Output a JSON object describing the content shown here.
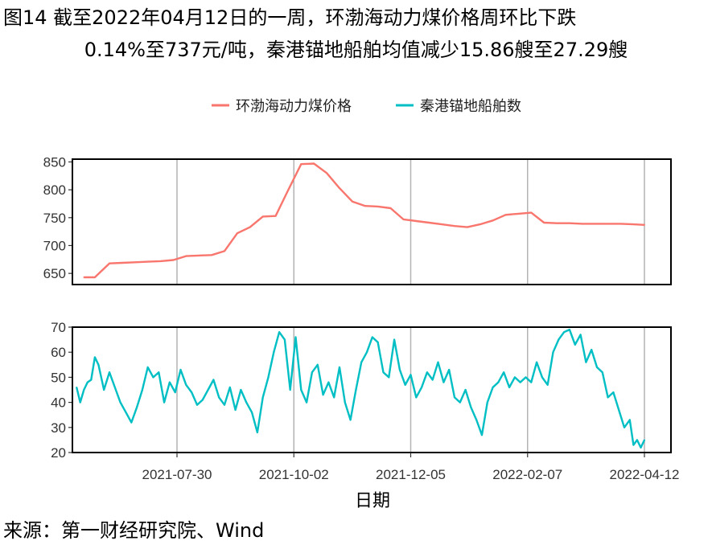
{
  "title_line1": "图14  截至2022年04月12日的一周，环渤海动力煤价格周环比下跌",
  "title_line2": "0.14%至737元/吨，秦港锚地船舶均值减少15.86艘至27.29艘",
  "source": "来源：第一财经研究院、Wind",
  "colors": {
    "coal": "#f8766d",
    "ships": "#00bfc4"
  },
  "chart_data": [
    {
      "type": "line",
      "xlabel": "",
      "ylabel": "",
      "ylim": [
        630,
        855
      ],
      "y_ticks": [
        650,
        700,
        750,
        800,
        850
      ],
      "series": [
        {
          "name": "环渤海动力煤价格",
          "x": [
            "2021-06-09",
            "2021-06-15",
            "2021-06-23",
            "2021-06-30",
            "2021-07-07",
            "2021-07-14",
            "2021-07-21",
            "2021-07-28",
            "2021-08-04",
            "2021-08-11",
            "2021-08-18",
            "2021-08-25",
            "2021-09-01",
            "2021-09-08",
            "2021-09-15",
            "2021-09-22",
            "2021-09-29",
            "2021-10-06",
            "2021-10-13",
            "2021-10-20",
            "2021-10-27",
            "2021-11-03",
            "2021-11-10",
            "2021-11-17",
            "2021-11-24",
            "2021-12-01",
            "2021-12-08",
            "2021-12-15",
            "2021-12-22",
            "2021-12-29",
            "2022-01-05",
            "2022-01-12",
            "2022-01-19",
            "2022-01-26",
            "2022-02-02",
            "2022-02-09",
            "2022-02-16",
            "2022-02-23",
            "2022-03-02",
            "2022-03-09",
            "2022-03-16",
            "2022-03-23",
            "2022-03-30",
            "2022-04-06",
            "2022-04-12"
          ],
          "y": [
            643,
            643,
            668,
            669,
            670,
            671,
            672,
            674,
            681,
            682,
            683,
            690,
            722,
            733,
            752,
            753,
            800,
            846,
            847,
            830,
            803,
            779,
            771,
            770,
            767,
            747,
            744,
            741,
            738,
            735,
            733,
            738,
            745,
            755,
            757,
            759,
            741,
            740,
            740,
            739,
            739,
            739,
            739,
            738,
            737
          ]
        }
      ]
    },
    {
      "type": "line",
      "xlabel": "日期",
      "ylabel": "",
      "ylim": [
        20,
        70
      ],
      "y_ticks": [
        20,
        30,
        40,
        50,
        60,
        70
      ],
      "x_ticks": [
        "2021-07-30",
        "2021-10-02",
        "2021-12-05",
        "2022-02-07",
        "2022-04-12"
      ],
      "series": [
        {
          "name": "秦港锚地船舶数",
          "x": [
            "2021-06-05",
            "2021-06-07",
            "2021-06-09",
            "2021-06-11",
            "2021-06-13",
            "2021-06-15",
            "2021-06-17",
            "2021-06-20",
            "2021-06-23",
            "2021-06-26",
            "2021-06-29",
            "2021-07-02",
            "2021-07-05",
            "2021-07-08",
            "2021-07-11",
            "2021-07-14",
            "2021-07-17",
            "2021-07-20",
            "2021-07-23",
            "2021-07-26",
            "2021-07-29",
            "2021-08-01",
            "2021-08-04",
            "2021-08-07",
            "2021-08-10",
            "2021-08-13",
            "2021-08-16",
            "2021-08-19",
            "2021-08-22",
            "2021-08-25",
            "2021-08-28",
            "2021-08-31",
            "2021-09-03",
            "2021-09-06",
            "2021-09-09",
            "2021-09-12",
            "2021-09-15",
            "2021-09-18",
            "2021-09-21",
            "2021-09-24",
            "2021-09-27",
            "2021-09-30",
            "2021-10-03",
            "2021-10-06",
            "2021-10-09",
            "2021-10-12",
            "2021-10-15",
            "2021-10-18",
            "2021-10-21",
            "2021-10-24",
            "2021-10-27",
            "2021-10-30",
            "2021-11-02",
            "2021-11-05",
            "2021-11-08",
            "2021-11-11",
            "2021-11-14",
            "2021-11-17",
            "2021-11-20",
            "2021-11-23",
            "2021-11-26",
            "2021-11-29",
            "2021-12-02",
            "2021-12-05",
            "2021-12-08",
            "2021-12-11",
            "2021-12-14",
            "2021-12-17",
            "2021-12-20",
            "2021-12-23",
            "2021-12-26",
            "2021-12-29",
            "2022-01-01",
            "2022-01-04",
            "2022-01-07",
            "2022-01-10",
            "2022-01-13",
            "2022-01-16",
            "2022-01-19",
            "2022-01-22",
            "2022-01-25",
            "2022-01-28",
            "2022-01-31",
            "2022-02-03",
            "2022-02-06",
            "2022-02-09",
            "2022-02-12",
            "2022-02-15",
            "2022-02-18",
            "2022-02-21",
            "2022-02-24",
            "2022-02-27",
            "2022-03-02",
            "2022-03-05",
            "2022-03-08",
            "2022-03-11",
            "2022-03-14",
            "2022-03-17",
            "2022-03-20",
            "2022-03-23",
            "2022-03-26",
            "2022-03-29",
            "2022-04-01",
            "2022-04-04",
            "2022-04-06",
            "2022-04-08",
            "2022-04-10",
            "2022-04-12"
          ],
          "y": [
            46,
            40,
            45,
            48,
            49,
            58,
            55,
            45,
            52,
            46,
            40,
            36,
            32,
            38,
            45,
            54,
            50,
            52,
            40,
            48,
            44,
            53,
            47,
            44,
            39,
            41,
            45,
            49,
            42,
            39,
            46,
            37,
            45,
            40,
            36,
            28,
            42,
            50,
            60,
            68,
            65,
            45,
            66,
            45,
            40,
            52,
            55,
            43,
            48,
            42,
            54,
            40,
            33,
            45,
            56,
            60,
            66,
            64,
            52,
            50,
            65,
            53,
            47,
            51,
            42,
            46,
            52,
            49,
            56,
            48,
            53,
            42,
            40,
            45,
            38,
            33,
            27,
            40,
            46,
            48,
            52,
            46,
            50,
            48,
            50,
            48,
            56,
            50,
            47,
            60,
            65,
            68,
            69,
            63,
            67,
            56,
            61,
            54,
            52,
            42,
            44,
            37,
            30,
            33,
            23,
            25,
            22,
            25
          ]
        }
      ]
    }
  ]
}
